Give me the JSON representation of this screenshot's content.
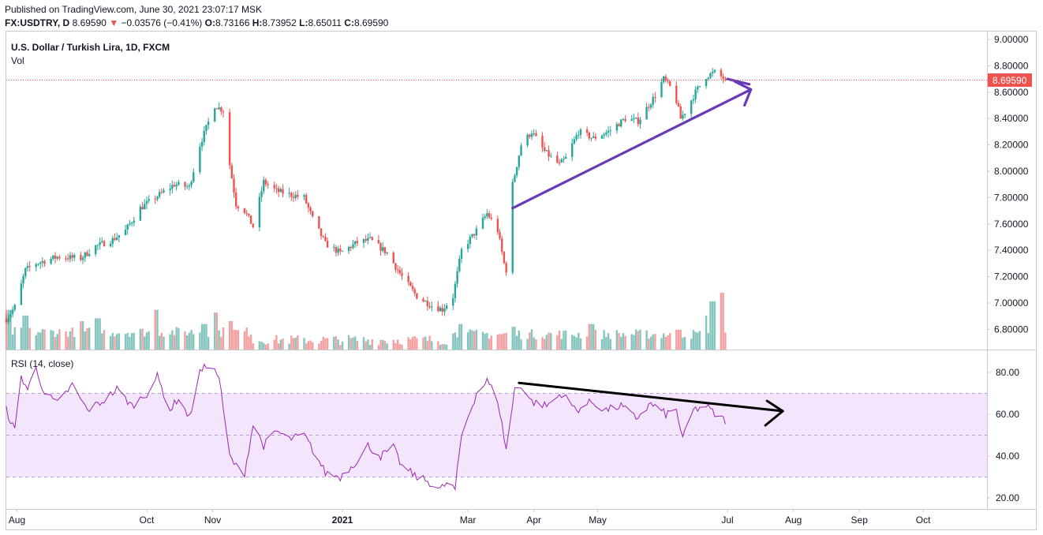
{
  "header": {
    "published": "Published on TradingView.com, June 30, 2021 23:07:17 MSK",
    "symbol_line": {
      "symbol": "FX:USDTRY, D",
      "price": "8.69590",
      "arrow": "▼",
      "change": "−0.03576 (−0.41%)",
      "o_label": "O:",
      "o": "8.73166",
      "h_label": "H:",
      "h": "8.73952",
      "l_label": "L:",
      "l": "8.65011",
      "c_label": "C:",
      "c": "8.69590"
    }
  },
  "main": {
    "title": "U.S. Dollar / Turkish Lira, 1D, FXCM",
    "vol_label": "Vol",
    "last_price": "8.69590"
  },
  "rsi": {
    "label": "RSI (14, close)"
  },
  "colors": {
    "up": "#26a69a",
    "down": "#ef5350",
    "vol_up": "#86c5bd",
    "vol_down": "#f2a0a0",
    "rsi": "#9c27b0",
    "band": "#f3e5fc",
    "trend": "#673ab7",
    "black_trend": "#000000"
  },
  "axes": {
    "price_ticks": [
      "9.00000",
      "8.80000",
      "8.60000",
      "8.40000",
      "8.20000",
      "8.00000",
      "7.80000",
      "7.60000",
      "7.40000",
      "7.20000",
      "7.00000",
      "6.80000"
    ],
    "rsi_ticks": [
      "80.00",
      "60.00",
      "40.00",
      "20.00"
    ],
    "time_ticks": [
      "Aug",
      "Oct",
      "Nov",
      "2021",
      "Mar",
      "Apr",
      "May",
      "Jul",
      "Aug",
      "Sep",
      "Oct"
    ]
  },
  "chart_data": [
    {
      "type": "candlestick",
      "title": "U.S. Dollar / Turkish Lira, 1D, FXCM",
      "x_range": [
        "2020-07-27",
        "2021-10-31"
      ],
      "ylim": [
        6.7,
        9.0
      ],
      "y_ticks": [
        6.8,
        7.0,
        7.2,
        7.4,
        7.6,
        7.8,
        8.0,
        8.2,
        8.4,
        8.6,
        8.8,
        9.0
      ],
      "close_path": [
        [
          "2020-07-27",
          6.88
        ],
        [
          "2020-07-31",
          6.97
        ],
        [
          "2020-08-05",
          7.25
        ],
        [
          "2020-08-10",
          7.3
        ],
        [
          "2020-08-20",
          7.35
        ],
        [
          "2020-08-31",
          7.34
        ],
        [
          "2020-09-07",
          7.43
        ],
        [
          "2020-09-15",
          7.48
        ],
        [
          "2020-09-21",
          7.55
        ],
        [
          "2020-09-28",
          7.72
        ],
        [
          "2020-10-05",
          7.8
        ],
        [
          "2020-10-14",
          7.9
        ],
        [
          "2020-10-21",
          7.88
        ],
        [
          "2020-10-26",
          8.2
        ],
        [
          "2020-11-02",
          8.5
        ],
        [
          "2020-11-06",
          8.46
        ],
        [
          "2020-11-09",
          8.05
        ],
        [
          "2020-11-12",
          7.75
        ],
        [
          "2020-11-16",
          7.7
        ],
        [
          "2020-11-20",
          7.58
        ],
        [
          "2020-11-25",
          7.92
        ],
        [
          "2020-12-01",
          7.85
        ],
        [
          "2020-12-08",
          7.82
        ],
        [
          "2020-12-14",
          7.8
        ],
        [
          "2020-12-18",
          7.64
        ],
        [
          "2020-12-24",
          7.45
        ],
        [
          "2020-12-31",
          7.38
        ],
        [
          "2021-01-08",
          7.46
        ],
        [
          "2021-01-14",
          7.48
        ],
        [
          "2021-01-22",
          7.38
        ],
        [
          "2021-01-29",
          7.2
        ],
        [
          "2021-02-05",
          7.05
        ],
        [
          "2021-02-12",
          6.98
        ],
        [
          "2021-02-17",
          6.95
        ],
        [
          "2021-02-22",
          7.05
        ],
        [
          "2021-02-26",
          7.4
        ],
        [
          "2021-03-05",
          7.55
        ],
        [
          "2021-03-10",
          7.68
        ],
        [
          "2021-03-15",
          7.55
        ],
        [
          "2021-03-18",
          7.3
        ],
        [
          "2021-03-19",
          7.25
        ],
        [
          "2021-03-22",
          7.9
        ],
        [
          "2021-03-26",
          8.2
        ],
        [
          "2021-03-31",
          8.3
        ],
        [
          "2021-04-06",
          8.15
        ],
        [
          "2021-04-13",
          8.05
        ],
        [
          "2021-04-16",
          8.1
        ],
        [
          "2021-04-22",
          8.3
        ],
        [
          "2021-04-29",
          8.25
        ],
        [
          "2021-05-06",
          8.3
        ],
        [
          "2021-05-14",
          8.4
        ],
        [
          "2021-05-20",
          8.38
        ],
        [
          "2021-05-27",
          8.55
        ],
        [
          "2021-06-01",
          8.7
        ],
        [
          "2021-06-06",
          8.6
        ],
        [
          "2021-06-09",
          8.4
        ],
        [
          "2021-06-11",
          8.45
        ],
        [
          "2021-06-16",
          8.6
        ],
        [
          "2021-06-21",
          8.72
        ],
        [
          "2021-06-25",
          8.75
        ],
        [
          "2021-06-30",
          8.696
        ]
      ]
    },
    {
      "type": "bar",
      "name": "Vol",
      "note": "relative daily volume",
      "spikes": [
        [
          "2020-07-28",
          0.7
        ],
        [
          "2020-08-05",
          0.6
        ],
        [
          "2020-08-31",
          0.5
        ],
        [
          "2020-09-08",
          0.55
        ],
        [
          "2020-10-05",
          0.7
        ],
        [
          "2020-10-28",
          0.45
        ],
        [
          "2020-11-02",
          0.65
        ],
        [
          "2020-11-09",
          0.5
        ],
        [
          "2021-02-26",
          0.45
        ],
        [
          "2021-03-22",
          0.4
        ],
        [
          "2021-04-28",
          0.45
        ],
        [
          "2021-06-08",
          0.35
        ],
        [
          "2021-06-20",
          0.6
        ],
        [
          "2021-06-24",
          0.85
        ],
        [
          "2021-06-28",
          1.0
        ]
      ]
    },
    {
      "type": "line",
      "name": "RSI (14, close)",
      "ylim": [
        18,
        88
      ],
      "bands": [
        30,
        50,
        70
      ],
      "x": [
        "2020-07-27",
        "2020-07-31",
        "2020-08-03",
        "2020-08-06",
        "2020-08-10",
        "2020-08-14",
        "2020-08-20",
        "2020-08-27",
        "2020-09-03",
        "2020-09-10",
        "2020-09-17",
        "2020-09-24",
        "2020-10-01",
        "2020-10-06",
        "2020-10-12",
        "2020-10-16",
        "2020-10-21",
        "2020-10-26",
        "2020-10-30",
        "2020-11-04",
        "2020-11-06",
        "2020-11-09",
        "2020-11-12",
        "2020-11-16",
        "2020-11-20",
        "2020-11-25",
        "2020-12-01",
        "2020-12-07",
        "2020-12-14",
        "2020-12-18",
        "2020-12-24",
        "2020-12-31",
        "2021-01-08",
        "2021-01-13",
        "2021-01-19",
        "2021-01-25",
        "2021-01-29",
        "2021-02-05",
        "2021-02-10",
        "2021-02-16",
        "2021-02-19",
        "2021-02-23",
        "2021-02-26",
        "2021-03-05",
        "2021-03-10",
        "2021-03-15",
        "2021-03-19",
        "2021-03-23",
        "2021-03-26",
        "2021-03-31",
        "2021-04-07",
        "2021-04-14",
        "2021-04-21",
        "2021-04-28",
        "2021-05-05",
        "2021-05-12",
        "2021-05-19",
        "2021-05-26",
        "2021-06-02",
        "2021-06-07",
        "2021-06-10",
        "2021-06-15",
        "2021-06-21",
        "2021-06-25",
        "2021-06-30"
      ],
      "values": [
        62,
        52,
        78,
        72,
        82,
        70,
        65,
        74,
        62,
        66,
        72,
        64,
        70,
        78,
        62,
        68,
        58,
        80,
        84,
        78,
        62,
        40,
        35,
        32,
        55,
        45,
        52,
        48,
        50,
        43,
        32,
        30,
        38,
        45,
        40,
        44,
        35,
        30,
        28,
        24,
        27,
        24,
        50,
        70,
        76,
        67,
        43,
        72,
        74,
        66,
        64,
        70,
        62,
        66,
        62,
        64,
        58,
        65,
        60,
        62,
        48,
        62,
        64,
        60,
        57
      ]
    }
  ]
}
